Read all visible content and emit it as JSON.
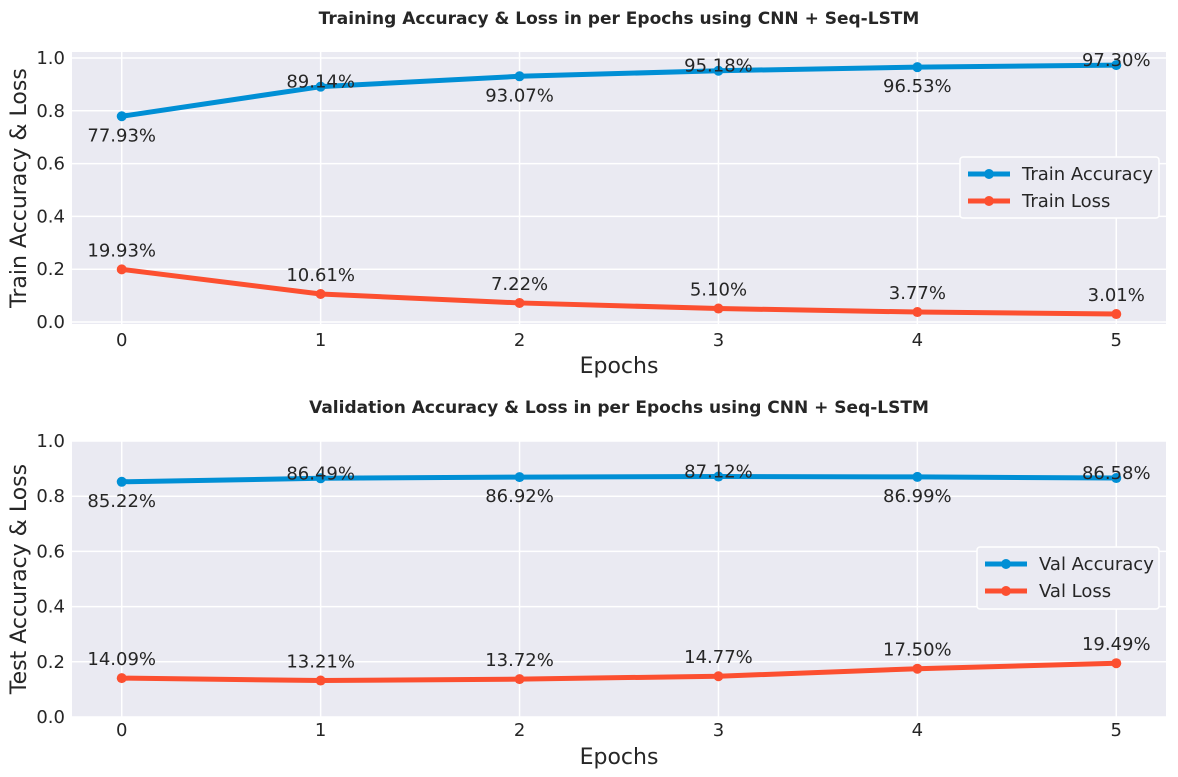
{
  "chart_data": [
    {
      "type": "line",
      "title": "Training Accuracy & Loss in per Epochs using CNN + Seq-LSTM",
      "xlabel": "Epochs",
      "ylabel": "Train Accuracy & Loss",
      "x": [
        0,
        1,
        2,
        3,
        4,
        5
      ],
      "xlim": [
        -0.25,
        5.25
      ],
      "ylim": [
        0,
        1.0
      ],
      "yticks": [
        "0.0",
        "0.2",
        "0.4",
        "0.6",
        "0.8",
        "1.0"
      ],
      "grid": true,
      "legend_position": "center-right",
      "series": [
        {
          "name": "Train Accuracy",
          "color": "#008fd5",
          "values": [
            0.7793,
            0.8914,
            0.9307,
            0.9518,
            0.9653,
            0.973
          ],
          "labels": [
            "77.93%",
            "89.14%",
            "93.07%",
            "95.18%",
            "96.53%",
            "97.30%"
          ]
        },
        {
          "name": "Train Loss",
          "color": "#fc4f30",
          "values": [
            0.1993,
            0.1061,
            0.0722,
            0.051,
            0.0377,
            0.0301
          ],
          "labels": [
            "19.93%",
            "10.61%",
            "7.22%",
            "5.10%",
            "3.77%",
            "3.01%"
          ]
        }
      ]
    },
    {
      "type": "line",
      "title": "Validation Accuracy & Loss in per Epochs using CNN + Seq-LSTM",
      "xlabel": "Epochs",
      "ylabel": "Test Accuracy & Loss",
      "x": [
        0,
        1,
        2,
        3,
        4,
        5
      ],
      "xlim": [
        -0.25,
        5.25
      ],
      "ylim": [
        0,
        1.0
      ],
      "yticks": [
        "0.0",
        "0.2",
        "0.4",
        "0.6",
        "0.8",
        "1.0"
      ],
      "grid": true,
      "legend_position": "center-right",
      "series": [
        {
          "name": "Val Accuracy",
          "color": "#008fd5",
          "values": [
            0.8522,
            0.8649,
            0.8692,
            0.8712,
            0.8699,
            0.8658
          ],
          "labels": [
            "85.22%",
            "86.49%",
            "86.92%",
            "87.12%",
            "86.99%",
            "86.58%"
          ]
        },
        {
          "name": "Val Loss",
          "color": "#fc4f30",
          "values": [
            0.1409,
            0.1321,
            0.1372,
            0.1477,
            0.175,
            0.1949
          ],
          "labels": [
            "14.09%",
            "13.21%",
            "13.72%",
            "14.77%",
            "17.50%",
            "19.49%"
          ]
        }
      ]
    }
  ]
}
